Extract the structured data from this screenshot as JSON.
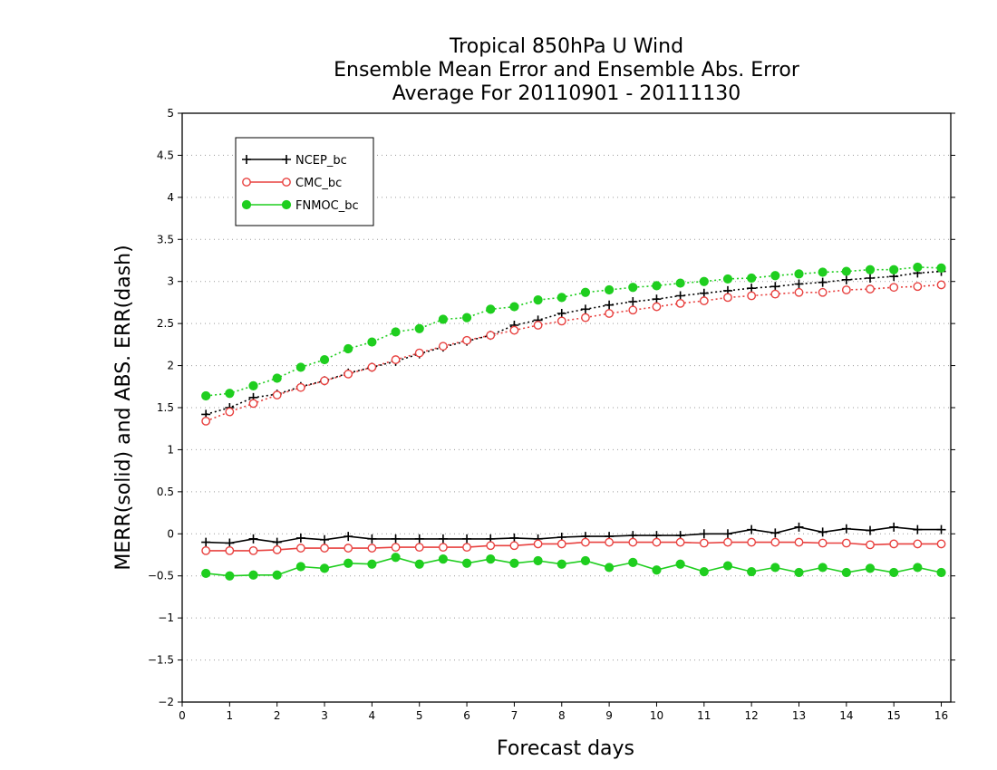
{
  "chart_data": {
    "type": "line",
    "title_lines": [
      "Tropical 850hPa U Wind",
      "Ensemble Mean Error and Ensemble Abs. Error",
      "Average For 20110901 - 20111130"
    ],
    "xlabel": "Forecast days",
    "ylabel": "MERR(solid) and ABS. ERR(dash)",
    "xlim": [
      0,
      16.2
    ],
    "ylim": [
      -2,
      5
    ],
    "xticks": [
      "0",
      "1",
      "2",
      "3",
      "4",
      "5",
      "6",
      "7",
      "8",
      "9",
      "10",
      "11",
      "12",
      "13",
      "14",
      "15",
      "16"
    ],
    "yticks": [
      "−2",
      "−1.5",
      "−1",
      "−0.5",
      "0",
      "0.5",
      "1",
      "1.5",
      "2",
      "2.5",
      "3",
      "3.5",
      "4",
      "4.5",
      "5"
    ],
    "grid": "horizontal dotted",
    "legend_position": "top-left",
    "x": [
      0.5,
      1,
      1.5,
      2,
      2.5,
      3,
      3.5,
      4,
      4.5,
      5,
      5.5,
      6,
      6.5,
      7,
      7.5,
      8,
      8.5,
      9,
      9.5,
      10,
      10.5,
      11,
      11.5,
      12,
      12.5,
      13,
      13.5,
      14,
      14.5,
      15,
      15.5,
      16
    ],
    "series": [
      {
        "name": "NCEP_bc",
        "color": "#000000",
        "marker": "plus",
        "merr": [
          -0.1,
          -0.11,
          -0.06,
          -0.1,
          -0.05,
          -0.07,
          -0.03,
          -0.06,
          -0.06,
          -0.06,
          -0.06,
          -0.06,
          -0.06,
          -0.05,
          -0.06,
          -0.04,
          -0.03,
          -0.03,
          -0.02,
          -0.02,
          -0.02,
          0.0,
          0.0,
          0.05,
          0.01,
          0.08,
          0.02,
          0.06,
          0.04,
          0.08,
          0.05,
          0.05
        ],
        "abs_err": [
          1.42,
          1.5,
          1.62,
          1.66,
          1.75,
          1.82,
          1.91,
          1.98,
          2.05,
          2.14,
          2.22,
          2.29,
          2.36,
          2.48,
          2.54,
          2.62,
          2.67,
          2.72,
          2.76,
          2.79,
          2.83,
          2.86,
          2.89,
          2.92,
          2.94,
          2.97,
          2.99,
          3.02,
          3.04,
          3.06,
          3.1,
          3.12
        ]
      },
      {
        "name": "CMC_bc",
        "color": "#e8413f",
        "marker": "open-circle",
        "merr": [
          -0.2,
          -0.2,
          -0.2,
          -0.19,
          -0.17,
          -0.17,
          -0.17,
          -0.17,
          -0.16,
          -0.16,
          -0.16,
          -0.16,
          -0.14,
          -0.14,
          -0.12,
          -0.12,
          -0.1,
          -0.1,
          -0.1,
          -0.1,
          -0.1,
          -0.11,
          -0.1,
          -0.1,
          -0.1,
          -0.1,
          -0.11,
          -0.11,
          -0.13,
          -0.12,
          -0.12,
          -0.12
        ],
        "abs_err": [
          1.34,
          1.45,
          1.55,
          1.65,
          1.74,
          1.82,
          1.9,
          1.98,
          2.07,
          2.15,
          2.23,
          2.3,
          2.36,
          2.42,
          2.48,
          2.53,
          2.57,
          2.62,
          2.66,
          2.7,
          2.74,
          2.77,
          2.81,
          2.83,
          2.85,
          2.87,
          2.87,
          2.9,
          2.91,
          2.93,
          2.94,
          2.96
        ]
      },
      {
        "name": "FNMOC_bc",
        "color": "#1fce1f",
        "marker": "filled-circle",
        "merr": [
          -0.47,
          -0.5,
          -0.49,
          -0.49,
          -0.39,
          -0.41,
          -0.35,
          -0.36,
          -0.28,
          -0.36,
          -0.3,
          -0.35,
          -0.3,
          -0.35,
          -0.32,
          -0.36,
          -0.32,
          -0.4,
          -0.34,
          -0.43,
          -0.36,
          -0.45,
          -0.38,
          -0.45,
          -0.4,
          -0.46,
          -0.4,
          -0.46,
          -0.41,
          -0.46,
          -0.4,
          -0.46
        ],
        "abs_err": [
          1.64,
          1.67,
          1.76,
          1.85,
          1.98,
          2.07,
          2.2,
          2.28,
          2.4,
          2.44,
          2.55,
          2.57,
          2.67,
          2.7,
          2.78,
          2.81,
          2.87,
          2.9,
          2.93,
          2.95,
          2.98,
          3.0,
          3.03,
          3.04,
          3.07,
          3.09,
          3.11,
          3.12,
          3.14,
          3.14,
          3.17,
          3.16
        ]
      }
    ]
  }
}
